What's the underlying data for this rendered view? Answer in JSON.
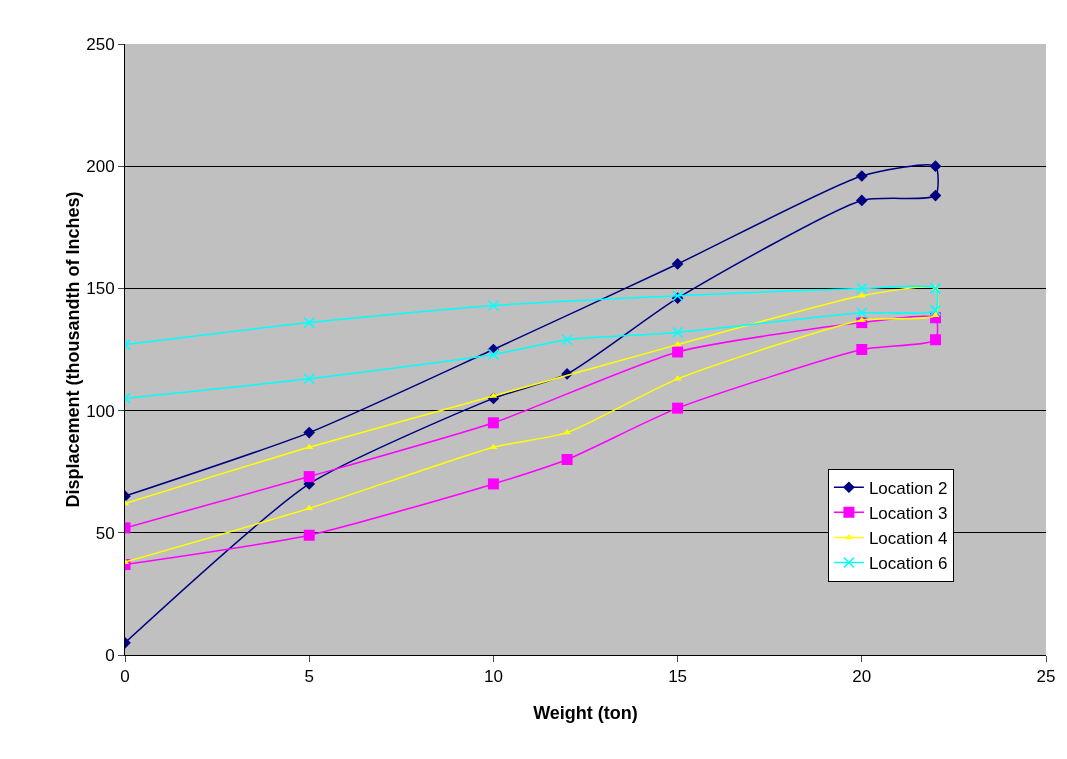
{
  "chart_data": {
    "type": "line",
    "xlabel": "Weight (ton)",
    "ylabel": "Displacement (thousandth of Inches)",
    "xlim": [
      0,
      25
    ],
    "xticks": [
      0,
      5,
      10,
      15,
      20,
      25
    ],
    "ylim": [
      0,
      250
    ],
    "yticks": [
      0,
      50,
      100,
      150,
      200,
      250
    ],
    "grid": "y",
    "legend": "bottom right",
    "line_style": "solid",
    "series": [
      {
        "name": "Location 2",
        "color": "#000080",
        "marker": "diamond",
        "x": [
          0,
          5,
          10,
          12,
          15,
          20,
          22,
          22,
          20,
          15,
          10,
          5,
          0
        ],
        "values": [
          5,
          70,
          105,
          115,
          146,
          186,
          188,
          200,
          196,
          160,
          125,
          91,
          65
        ]
      },
      {
        "name": "Location 3",
        "color": "#ff00ff",
        "marker": "square",
        "x": [
          0,
          5,
          10,
          12,
          15,
          20,
          22,
          22,
          20,
          15,
          10,
          5,
          0
        ],
        "values": [
          37,
          49,
          70,
          80,
          101,
          125,
          129,
          138,
          136,
          124,
          95,
          73,
          52
        ]
      },
      {
        "name": "Location 4",
        "color": "#ffff00",
        "marker": "triangle",
        "x": [
          0,
          5,
          10,
          12,
          15,
          20,
          22,
          22,
          20,
          15,
          10,
          5,
          0
        ],
        "values": [
          38,
          60,
          85,
          91,
          113,
          137,
          139,
          150,
          147,
          127,
          106,
          85,
          62
        ]
      },
      {
        "name": "Location 6",
        "color": "#00ffff",
        "marker": "cross",
        "x": [
          0,
          5,
          10,
          12,
          15,
          20,
          22,
          22,
          20,
          15,
          10,
          5,
          0
        ],
        "values": [
          105,
          113,
          123,
          129,
          132,
          140,
          141,
          150,
          150,
          147,
          143,
          136,
          127
        ]
      }
    ]
  }
}
